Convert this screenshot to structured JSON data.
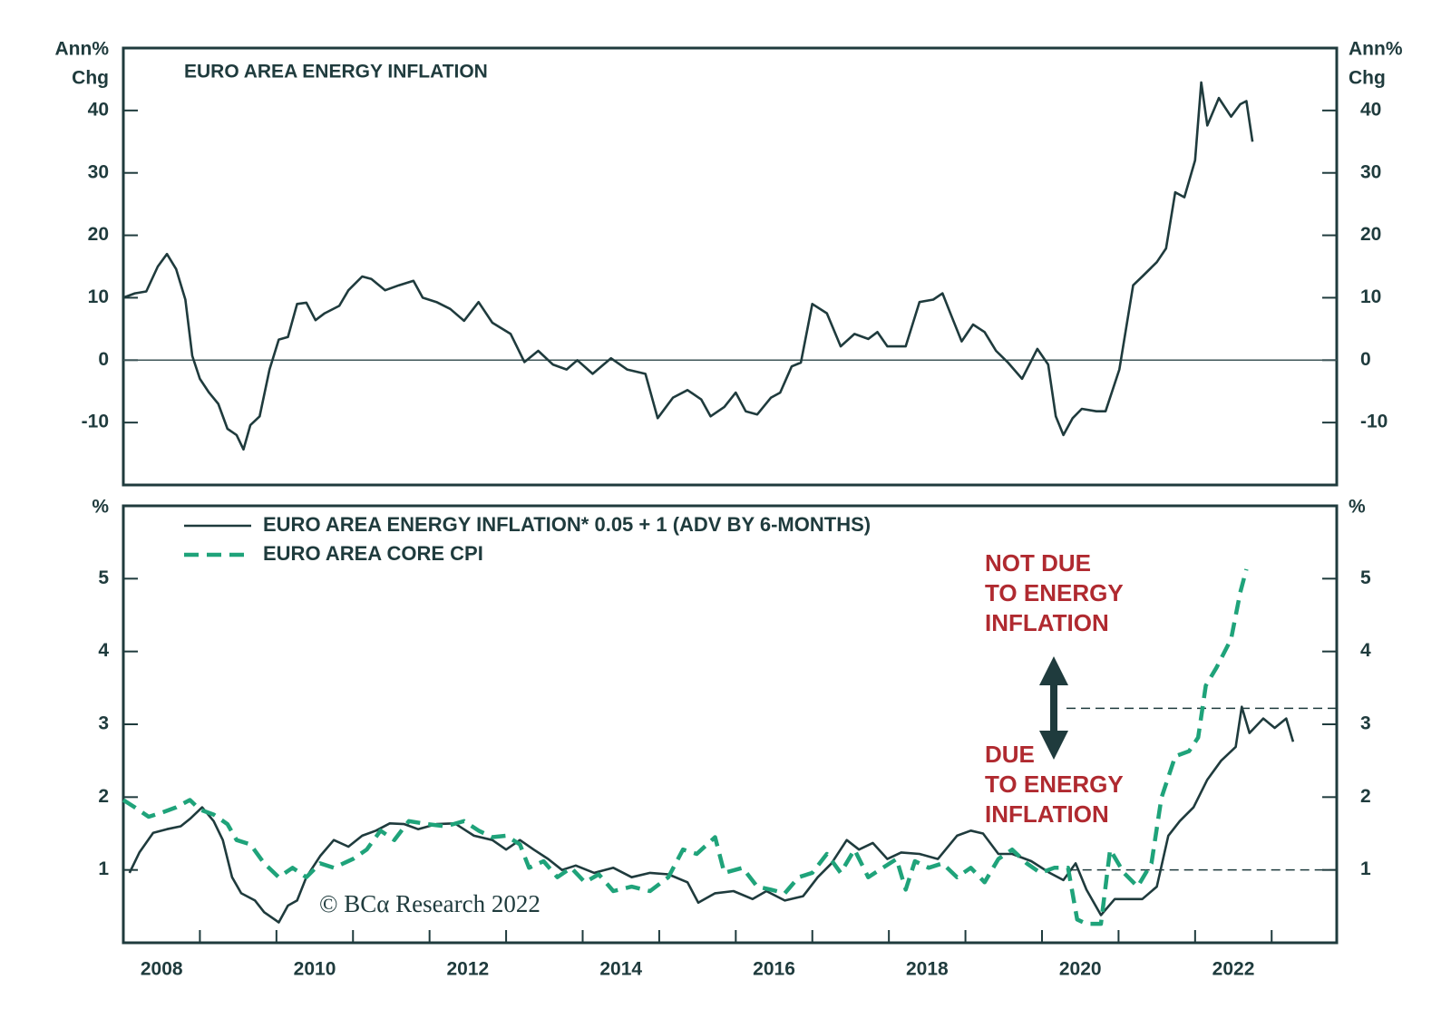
{
  "chart_data": [
    {
      "type": "line",
      "title": "EURO AREA ENERGY INFLATION",
      "ylabel": [
        "Ann%",
        "Chg"
      ],
      "xlim": [
        2008,
        2023.85
      ],
      "ylim": [
        -20,
        50
      ],
      "yticks": [
        -10,
        0,
        10,
        20,
        30,
        40
      ],
      "hline": 0,
      "series": [
        {
          "color": "#1f3b3d",
          "x": [
            2008.0,
            2008.15,
            2008.3,
            2008.45,
            2008.57,
            2008.69,
            2008.81,
            2008.9,
            2009.0,
            2009.12,
            2009.24,
            2009.36,
            2009.48,
            2009.57,
            2009.66,
            2009.78,
            2009.91,
            2010.03,
            2010.15,
            2010.27,
            2010.39,
            2010.51,
            2010.63,
            2010.82,
            2010.94,
            2011.12,
            2011.24,
            2011.42,
            2011.6,
            2011.79,
            2011.91,
            2012.09,
            2012.27,
            2012.45,
            2012.64,
            2012.82,
            2013.06,
            2013.24,
            2013.42,
            2013.61,
            2013.79,
            2013.93,
            2014.13,
            2014.37,
            2014.58,
            2014.82,
            2014.98,
            2015.18,
            2015.37,
            2015.55,
            2015.67,
            2015.85,
            2016.0,
            2016.13,
            2016.28,
            2016.46,
            2016.58,
            2016.73,
            2016.85,
            2017.0,
            2017.19,
            2017.37,
            2017.55,
            2017.73,
            2017.85,
            2017.98,
            2018.22,
            2018.4,
            2018.58,
            2018.7,
            2018.83,
            2018.95,
            2019.1,
            2019.25,
            2019.4,
            2019.55,
            2019.74,
            2019.94,
            2020.08,
            2020.18,
            2020.28,
            2020.4,
            2020.52,
            2020.71,
            2020.83,
            2021.01,
            2021.19,
            2021.31,
            2021.5,
            2021.62,
            2021.74,
            2021.86,
            2022.0,
            2022.08,
            2022.16,
            2022.31,
            2022.47,
            2022.59,
            2022.67,
            2022.75
          ],
          "values": [
            10,
            10.7,
            11,
            15,
            17,
            14.6,
            9.7,
            0.7,
            -3,
            -5.2,
            -7,
            -11,
            -12,
            -14.3,
            -10.4,
            -9,
            -1.5,
            3.3,
            3.7,
            9,
            9.2,
            6.4,
            7.5,
            8.7,
            11.2,
            13.4,
            13,
            11.2,
            12,
            12.7,
            10,
            9.3,
            8.2,
            6.3,
            9.3,
            6,
            4.2,
            -0.3,
            1.5,
            -0.7,
            -1.5,
            0,
            -2.2,
            0.3,
            -1.5,
            -2.2,
            -9.3,
            -6,
            -4.8,
            -6.3,
            -9,
            -7.5,
            -5.2,
            -8.2,
            -8.7,
            -6,
            -5.2,
            -1,
            -0.4,
            9,
            7.5,
            2.2,
            4.2,
            3.4,
            4.5,
            2.2,
            2.2,
            9.3,
            9.7,
            10.7,
            6.7,
            3,
            5.7,
            4.5,
            1.5,
            -0.3,
            -3,
            1.8,
            -0.7,
            -9,
            -12,
            -9.3,
            -7.8,
            -8.2,
            -8.2,
            -1.5,
            12,
            13.4,
            15.7,
            17.9,
            26.9,
            26.1,
            32,
            44.5,
            37.6,
            42,
            39,
            41,
            41.5,
            35
          ]
        }
      ]
    },
    {
      "type": "line",
      "ylabel": [
        "%"
      ],
      "xlim": [
        2008,
        2023.85
      ],
      "ylim": [
        0,
        6
      ],
      "yticks": [
        1,
        2,
        3,
        4,
        5
      ],
      "xticks": [
        {
          "value": 2008.5,
          "label": "2008"
        },
        {
          "value": 2010.5,
          "label": "2010"
        },
        {
          "value": 2012.5,
          "label": "2012"
        },
        {
          "value": 2014.5,
          "label": "2014"
        },
        {
          "value": 2016.5,
          "label": "2016"
        },
        {
          "value": 2018.5,
          "label": "2018"
        },
        {
          "value": 2020.5,
          "label": "2020"
        },
        {
          "value": 2022.5,
          "label": "2022"
        }
      ],
      "xtick_marks": [
        2009,
        2010,
        2011,
        2012,
        2013,
        2014,
        2015,
        2016,
        2017,
        2018,
        2019,
        2020,
        2021,
        2022,
        2023
      ],
      "series": [
        {
          "name": "EURO AREA ENERGY INFLATION* 0.05 + 1 (ADV BY 6-MONTHS)",
          "color": "#1f3b3d",
          "dash": false,
          "x": [
            2008.08,
            2008.21,
            2008.39,
            2008.57,
            2008.75,
            2008.87,
            2009.03,
            2009.18,
            2009.3,
            2009.42,
            2009.54,
            2009.72,
            2009.84,
            2010.03,
            2010.15,
            2010.27,
            2010.39,
            2010.57,
            2010.75,
            2010.94,
            2011.12,
            2011.3,
            2011.48,
            2011.67,
            2011.85,
            2012.09,
            2012.33,
            2012.58,
            2012.82,
            2013.0,
            2013.18,
            2013.36,
            2013.55,
            2013.73,
            2013.91,
            2014.15,
            2014.4,
            2014.64,
            2014.88,
            2015.12,
            2015.37,
            2015.51,
            2015.73,
            2015.97,
            2016.22,
            2016.4,
            2016.64,
            2016.88,
            2017.07,
            2017.25,
            2017.45,
            2017.61,
            2017.79,
            2017.98,
            2018.16,
            2018.4,
            2018.64,
            2018.89,
            2019.07,
            2019.23,
            2019.43,
            2019.61,
            2019.86,
            2020.1,
            2020.28,
            2020.44,
            2020.58,
            2020.77,
            2020.95,
            2021.13,
            2021.31,
            2021.5,
            2021.65,
            2021.8,
            2021.98,
            2022.16,
            2022.34,
            2022.53,
            2022.61,
            2022.71,
            2022.89,
            2023.04,
            2023.19,
            2023.28
          ],
          "values": [
            0.96,
            1.24,
            1.51,
            1.56,
            1.6,
            1.7,
            1.86,
            1.67,
            1.41,
            0.9,
            0.68,
            0.58,
            0.42,
            0.28,
            0.51,
            0.58,
            0.9,
            1.19,
            1.41,
            1.32,
            1.47,
            1.54,
            1.64,
            1.63,
            1.56,
            1.63,
            1.64,
            1.47,
            1.41,
            1.28,
            1.41,
            1.28,
            1.15,
            1.0,
            1.06,
            0.96,
            1.03,
            0.9,
            0.96,
            0.94,
            0.83,
            0.55,
            0.68,
            0.71,
            0.6,
            0.71,
            0.58,
            0.64,
            0.9,
            1.09,
            1.41,
            1.28,
            1.37,
            1.15,
            1.24,
            1.22,
            1.15,
            1.47,
            1.54,
            1.5,
            1.22,
            1.22,
            1.12,
            0.96,
            0.86,
            1.09,
            0.73,
            0.38,
            0.6,
            0.6,
            0.6,
            0.77,
            1.47,
            1.67,
            1.86,
            2.24,
            2.5,
            2.69,
            3.24,
            2.88,
            3.08,
            2.95,
            3.08,
            2.76
          ]
        },
        {
          "name": "EURO AREA CORE CPI",
          "color": "#1fa37a",
          "dash": true,
          "x": [
            2008.0,
            2008.15,
            2008.33,
            2008.51,
            2008.69,
            2008.87,
            2009.0,
            2009.18,
            2009.36,
            2009.48,
            2009.66,
            2009.84,
            2010.03,
            2010.21,
            2010.39,
            2010.57,
            2010.75,
            2011.0,
            2011.18,
            2011.36,
            2011.54,
            2011.73,
            2011.97,
            2012.21,
            2012.45,
            2012.64,
            2012.82,
            2013.0,
            2013.18,
            2013.3,
            2013.49,
            2013.67,
            2013.85,
            2014.03,
            2014.21,
            2014.4,
            2014.64,
            2014.88,
            2015.12,
            2015.31,
            2015.49,
            2015.73,
            2015.85,
            2016.09,
            2016.28,
            2016.46,
            2016.64,
            2016.82,
            2017.0,
            2017.19,
            2017.37,
            2017.55,
            2017.73,
            2017.92,
            2018.1,
            2018.22,
            2018.34,
            2018.52,
            2018.7,
            2018.89,
            2019.07,
            2019.25,
            2019.43,
            2019.61,
            2019.8,
            2019.98,
            2020.16,
            2020.34,
            2020.46,
            2020.58,
            2020.77,
            2020.89,
            2021.07,
            2021.25,
            2021.43,
            2021.56,
            2021.74,
            2021.92,
            2022.04,
            2022.14,
            2022.28,
            2022.47,
            2022.59,
            2022.67
          ],
          "values": [
            1.96,
            1.86,
            1.73,
            1.79,
            1.86,
            1.96,
            1.83,
            1.76,
            1.63,
            1.41,
            1.35,
            1.09,
            0.9,
            1.03,
            0.9,
            1.09,
            1.03,
            1.15,
            1.28,
            1.54,
            1.41,
            1.67,
            1.63,
            1.6,
            1.67,
            1.54,
            1.45,
            1.47,
            1.35,
            1.03,
            1.12,
            0.9,
            1.03,
            0.83,
            0.94,
            0.71,
            0.77,
            0.71,
            0.9,
            1.28,
            1.22,
            1.45,
            0.96,
            1.03,
            0.77,
            0.73,
            0.68,
            0.9,
            0.96,
            1.22,
            0.96,
            1.28,
            0.9,
            1.03,
            1.15,
            0.73,
            1.12,
            1.03,
            1.09,
            0.9,
            1.03,
            0.83,
            1.15,
            1.28,
            1.09,
            0.96,
            1.03,
            1.03,
            0.32,
            0.26,
            0.26,
            1.28,
            0.96,
            0.77,
            1.09,
            1.99,
            2.56,
            2.63,
            2.82,
            3.53,
            3.78,
            4.17,
            4.81,
            5.13
          ]
        }
      ],
      "reference_lines": [
        {
          "value": 3.22,
          "from": 2020.32
        },
        {
          "value": 1,
          "from": 2020.34
        }
      ],
      "annotations": [
        [
          "NOT DUE",
          "TO ENERGY",
          "INFLATION"
        ],
        [
          "DUE",
          "TO ENERGY",
          "INFLATION"
        ]
      ],
      "watermark": "© BCα Research 2022"
    }
  ]
}
